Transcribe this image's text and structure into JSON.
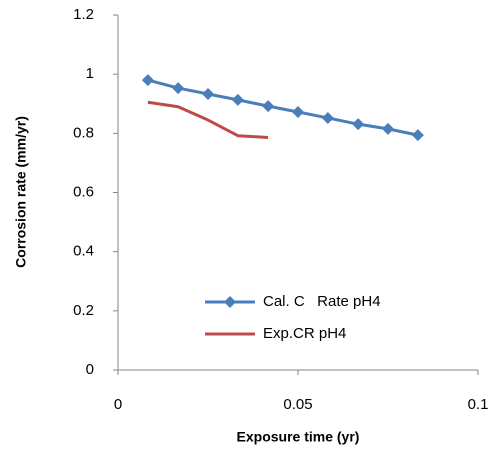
{
  "chart_data": {
    "type": "line",
    "x_label": "Exposure time (yr)",
    "y_label": "Corrosion rate (mm/yr)",
    "x": [
      0.0083,
      0.0167,
      0.025,
      0.0333,
      0.0417,
      0.05,
      0.0583,
      0.0667,
      0.075,
      0.0833
    ],
    "series": [
      {
        "name": "Cal. C   Rate pH4",
        "color": "#4a7ebb",
        "marker": "diamond",
        "values": [
          0.98,
          0.953,
          0.933,
          0.913,
          0.892,
          0.872,
          0.852,
          0.831,
          0.815,
          0.794
        ]
      },
      {
        "name": "Exp.CR pH4",
        "color": "#be4b48",
        "marker": "none",
        "values": [
          0.905,
          0.89,
          0.845,
          0.792,
          0.786,
          null,
          null,
          null,
          null,
          null
        ]
      }
    ],
    "xlim": [
      0,
      0.1
    ],
    "xticks": [
      0,
      0.05,
      0.1
    ],
    "ylim": [
      0,
      1.2
    ],
    "yticks": [
      0,
      0.2,
      0.4,
      0.6,
      0.8,
      1,
      1.2
    ],
    "grid": false,
    "legend": "lower center"
  }
}
